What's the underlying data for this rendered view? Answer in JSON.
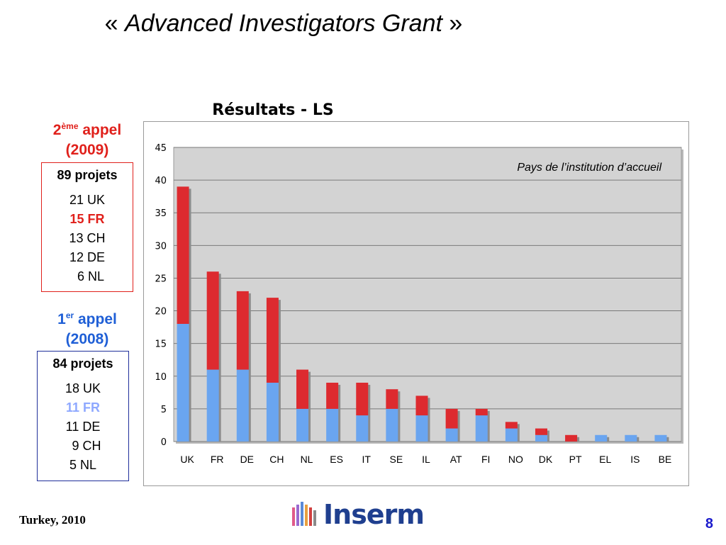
{
  "slide": {
    "title_open": "« ",
    "title_italic": "Advanced Investigators Grant",
    "title_close": " »",
    "footer_left": "Turkey, 2010",
    "page_number": "8",
    "logo_text": "Inserm"
  },
  "call2": {
    "number": "2",
    "sup": "ème",
    "label": " appel",
    "year": "(2009)",
    "projects": "89 projets",
    "lines": [
      "21 UK",
      "15 FR",
      "13 CH",
      "12 DE",
      "6 NL"
    ]
  },
  "call1": {
    "number": "1",
    "sup": "er",
    "label": " appel",
    "year": "(2008)",
    "projects": "84 projets",
    "lines": [
      "18 UK",
      "11 FR",
      "11 DE",
      "9 CH",
      "5 NL"
    ]
  },
  "colors": {
    "red": "#e0201b",
    "blue": "#1f5fd6",
    "bar_blue": "#6aa5f0",
    "bar_red": "#dd2a2f",
    "plot_bg": "#d3d3d3"
  },
  "chart_data": {
    "type": "bar",
    "stacked": true,
    "title": "Résultats - LS",
    "annotation": "Pays de l’institution d’accueil",
    "categories": [
      "UK",
      "FR",
      "DE",
      "CH",
      "NL",
      "ES",
      "IT",
      "SE",
      "IL",
      "AT",
      "FI",
      "NO",
      "DK",
      "PT",
      "EL",
      "IS",
      "BE"
    ],
    "series": [
      {
        "values": [
          18,
          11,
          11,
          9,
          5,
          5,
          4,
          5,
          4,
          2,
          4,
          2,
          1,
          0,
          1,
          1,
          1
        ],
        "color": "#6aa5f0"
      },
      {
        "values": [
          21,
          15,
          12,
          13,
          6,
          4,
          5,
          3,
          3,
          3,
          1,
          1,
          1,
          1,
          0,
          0,
          0
        ],
        "color": "#dd2a2f"
      }
    ],
    "ylim": [
      0,
      45
    ],
    "yticks": [
      0,
      5,
      10,
      15,
      20,
      25,
      30,
      35,
      40,
      45
    ],
    "grid": true,
    "xlabel": "",
    "ylabel": ""
  }
}
